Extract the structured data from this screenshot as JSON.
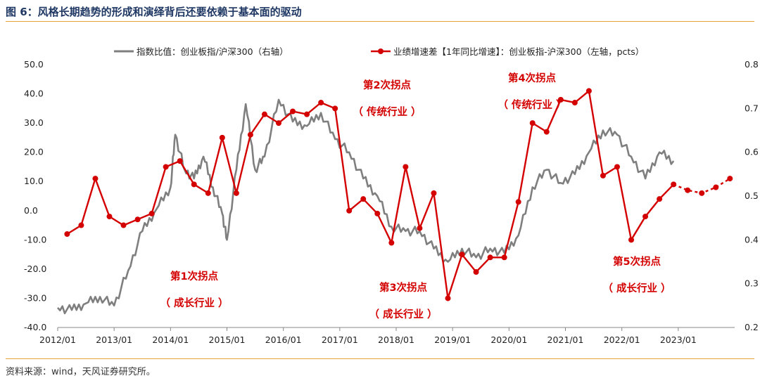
{
  "title": "图 6：风格长期趋势的形成和演绎背后还要依赖于基本面的驱动",
  "source": "资料来源：wind，天风证券研究所。",
  "colors": {
    "ratio": "#7f7f7f",
    "growth": "#d40000",
    "accent": "#e8a23a",
    "title": "#1f3864"
  },
  "chart_data": {
    "type": "line",
    "title": "",
    "legend_position": "top",
    "grid": false,
    "x_tick_labels": [
      "2012/01",
      "2013/01",
      "2014/01",
      "2015/01",
      "2016/01",
      "2017/01",
      "2018/01",
      "2019/01",
      "2020/01",
      "2021/01",
      "2022/01",
      "2023/01"
    ],
    "y_left": {
      "ticks": [
        "50.0",
        "40.0",
        "30.0",
        "20.0",
        "10.0",
        "0.0",
        "-10.0",
        "-20.0",
        "-30.0",
        "-40.0"
      ],
      "range": [
        -40,
        50
      ]
    },
    "y_right": {
      "ticks": [
        "0.8",
        "0.7",
        "0.6",
        "0.5",
        "0.4",
        "0.3",
        "0.2"
      ],
      "range": [
        0.2,
        0.8
      ]
    },
    "series": [
      {
        "name": "指数比值：创业板指/沪深300（右轴）",
        "axis": "right",
        "style": "line",
        "points": [
          [
            "2012-01",
            0.245
          ],
          [
            "2012-04",
            0.24
          ],
          [
            "2012-07",
            0.255
          ],
          [
            "2012-10",
            0.27
          ],
          [
            "2013-01",
            0.25
          ],
          [
            "2013-04",
            0.33
          ],
          [
            "2013-07",
            0.42
          ],
          [
            "2013-10",
            0.47
          ],
          [
            "2014-01",
            0.52
          ],
          [
            "2014-02",
            0.64
          ],
          [
            "2014-04",
            0.56
          ],
          [
            "2014-06",
            0.54
          ],
          [
            "2014-08",
            0.59
          ],
          [
            "2014-10",
            0.52
          ],
          [
            "2014-12",
            0.46
          ],
          [
            "2015-01",
            0.4
          ],
          [
            "2015-03",
            0.56
          ],
          [
            "2015-05",
            0.71
          ],
          [
            "2015-07",
            0.56
          ],
          [
            "2015-09",
            0.59
          ],
          [
            "2015-12",
            0.72
          ],
          [
            "2016-03",
            0.67
          ],
          [
            "2016-06",
            0.66
          ],
          [
            "2016-09",
            0.69
          ],
          [
            "2016-12",
            0.63
          ],
          [
            "2017-03",
            0.6
          ],
          [
            "2017-06",
            0.54
          ],
          [
            "2017-09",
            0.5
          ],
          [
            "2017-12",
            0.43
          ],
          [
            "2018-03",
            0.42
          ],
          [
            "2018-06",
            0.42
          ],
          [
            "2018-09",
            0.38
          ],
          [
            "2018-12",
            0.35
          ],
          [
            "2019-03",
            0.38
          ],
          [
            "2019-06",
            0.36
          ],
          [
            "2019-09",
            0.38
          ],
          [
            "2019-12",
            0.37
          ],
          [
            "2020-03",
            0.41
          ],
          [
            "2020-06",
            0.52
          ],
          [
            "2020-09",
            0.56
          ],
          [
            "2020-12",
            0.53
          ],
          [
            "2021-03",
            0.55
          ],
          [
            "2021-06",
            0.6
          ],
          [
            "2021-09",
            0.65
          ],
          [
            "2021-12",
            0.64
          ],
          [
            "2022-03",
            0.59
          ],
          [
            "2022-06",
            0.54
          ],
          [
            "2022-09",
            0.6
          ],
          [
            "2022-12",
            0.58
          ]
        ]
      },
      {
        "name": "业绩增速差【1年同比增速】：创业板指-沪深300（左轴，pcts）",
        "axis": "left",
        "style": "line-marker",
        "points": [
          [
            "2012-03",
            -8
          ],
          [
            "2012-06",
            -5
          ],
          [
            "2012-09",
            11
          ],
          [
            "2012-12",
            -2
          ],
          [
            "2013-03",
            -5
          ],
          [
            "2013-06",
            -3
          ],
          [
            "2013-09",
            -1
          ],
          [
            "2013-12",
            15
          ],
          [
            "2014-03",
            17
          ],
          [
            "2014-06",
            9
          ],
          [
            "2014-09",
            6
          ],
          [
            "2014-12",
            25
          ],
          [
            "2015-03",
            6
          ],
          [
            "2015-06",
            26
          ],
          [
            "2015-09",
            33
          ],
          [
            "2015-12",
            30
          ],
          [
            "2016-03",
            34
          ],
          [
            "2016-06",
            33
          ],
          [
            "2016-09",
            37
          ],
          [
            "2016-12",
            35
          ],
          [
            "2017-03",
            0
          ],
          [
            "2017-06",
            4
          ],
          [
            "2017-09",
            -1
          ],
          [
            "2017-12",
            -11
          ],
          [
            "2018-03",
            15
          ],
          [
            "2018-06",
            -6
          ],
          [
            "2018-09",
            6
          ],
          [
            "2018-12",
            -30
          ],
          [
            "2019-03",
            -15
          ],
          [
            "2019-06",
            -21
          ],
          [
            "2019-09",
            -16
          ],
          [
            "2019-12",
            -16
          ],
          [
            "2020-03",
            3
          ],
          [
            "2020-06",
            30
          ],
          [
            "2020-09",
            27
          ],
          [
            "2020-12",
            38
          ],
          [
            "2021-03",
            37
          ],
          [
            "2021-06",
            41
          ],
          [
            "2021-09",
            12
          ],
          [
            "2021-12",
            15
          ],
          [
            "2022-03",
            -10
          ],
          [
            "2022-06",
            -2
          ],
          [
            "2022-09",
            4
          ],
          [
            "2022-12",
            9
          ]
        ],
        "forecast_points": [
          [
            "2022-12",
            9
          ],
          [
            "2023-03",
            7
          ],
          [
            "2023-06",
            6
          ],
          [
            "2023-09",
            8
          ],
          [
            "2023-12",
            11
          ]
        ]
      }
    ],
    "annotations": [
      {
        "lines": [
          "第1次拐点",
          "（ 成长行业 ）"
        ]
      },
      {
        "lines": [
          "第2次拐点",
          "（ 传统行业 ）"
        ]
      },
      {
        "lines": [
          "第3次拐点",
          "（ 成长行业 ）"
        ]
      },
      {
        "lines": [
          "第4次拐点",
          "（ 传统行业 ）"
        ]
      },
      {
        "lines": [
          "第5次拐点",
          "（ 成长行业 ）"
        ]
      }
    ]
  }
}
